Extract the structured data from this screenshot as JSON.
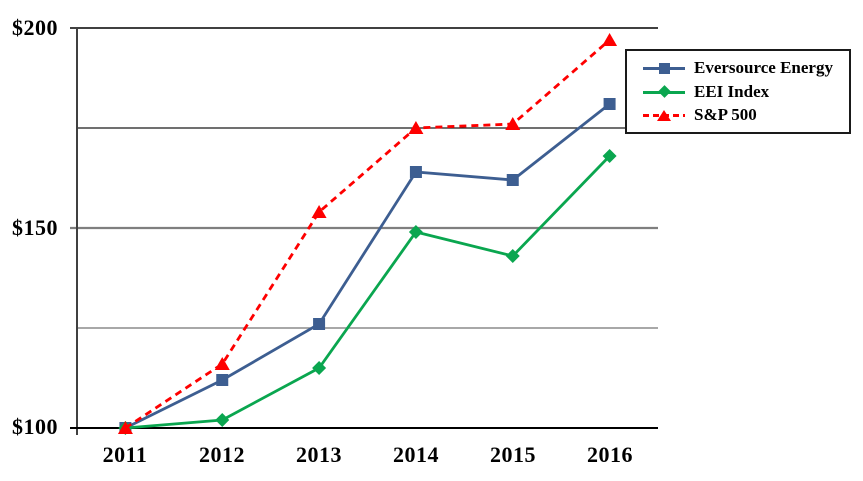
{
  "chart_data": {
    "type": "line",
    "title": "",
    "xlabel": "",
    "ylabel": "",
    "categories": [
      "2011",
      "2012",
      "2013",
      "2014",
      "2015",
      "2016"
    ],
    "series": [
      {
        "name": "Eversource Energy",
        "color": "#3d5e91",
        "marker": "square",
        "line": "solid",
        "values": [
          100,
          112,
          126,
          164,
          162,
          181
        ]
      },
      {
        "name": "EEI Index",
        "color": "#0aa64f",
        "marker": "diamond",
        "line": "solid",
        "values": [
          100,
          102,
          115,
          149,
          143,
          168
        ]
      },
      {
        "name": "S&P 500",
        "color": "#fe0000",
        "marker": "triangle",
        "line": "dashed",
        "values": [
          100,
          116,
          154,
          175,
          176,
          197
        ]
      }
    ],
    "yticks": [
      {
        "value": 100,
        "label": "$100"
      },
      {
        "value": 150,
        "label": "$150"
      },
      {
        "value": 200,
        "label": "$200"
      }
    ],
    "gridline_values": [
      125,
      150,
      175
    ],
    "ylim": [
      100,
      200
    ],
    "grid": "horizontal",
    "legend_position": "top-right",
    "axis_color": "#404040",
    "gridline_color": "#808080"
  }
}
